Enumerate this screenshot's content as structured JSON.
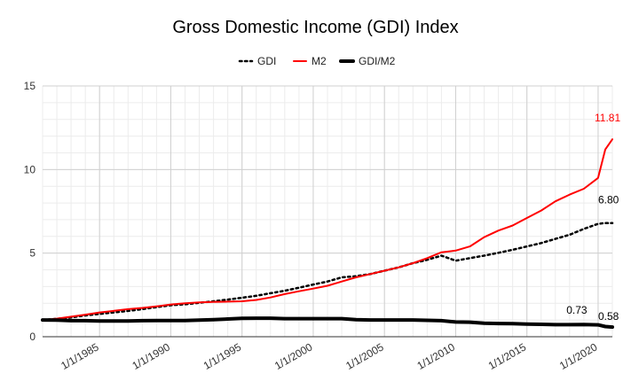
{
  "chart_data": {
    "type": "line",
    "title": "Gross Domestic Income (GDI) Index",
    "xlabel": "",
    "ylabel": "",
    "xlim": [
      1981,
      2021
    ],
    "ylim": [
      0,
      15
    ],
    "y_ticks": [
      0,
      5,
      10,
      15
    ],
    "x_ticks": [
      1985,
      1990,
      1995,
      2000,
      2005,
      2010,
      2015,
      2020
    ],
    "x_tick_labels": [
      "1/1/1985",
      "1/1/1990",
      "1/1/1995",
      "1/1/2000",
      "1/1/2005",
      "1/1/2010",
      "1/1/2015",
      "1/1/2020"
    ],
    "grid": true,
    "legend_position": "top",
    "x": [
      1981,
      1982,
      1983,
      1984,
      1985,
      1986,
      1987,
      1988,
      1989,
      1990,
      1991,
      1992,
      1993,
      1994,
      1995,
      1996,
      1997,
      1998,
      1999,
      2000,
      2001,
      2002,
      2003,
      2004,
      2005,
      2006,
      2007,
      2008,
      2009,
      2010,
      2011,
      2012,
      2013,
      2014,
      2015,
      2016,
      2017,
      2018,
      2019,
      2020,
      2020.5,
      2021
    ],
    "series": [
      {
        "name": "GDI",
        "color": "#000000",
        "style": "dotted",
        "values": [
          1.0,
          1.07,
          1.15,
          1.27,
          1.36,
          1.45,
          1.54,
          1.65,
          1.77,
          1.88,
          1.94,
          2.03,
          2.12,
          2.22,
          2.33,
          2.45,
          2.6,
          2.75,
          2.93,
          3.12,
          3.3,
          3.55,
          3.62,
          3.75,
          3.95,
          4.15,
          4.4,
          4.6,
          4.85,
          4.55,
          4.7,
          4.85,
          5.02,
          5.2,
          5.4,
          5.6,
          5.85,
          6.1,
          6.45,
          6.75,
          6.8,
          6.8
        ],
        "end_label": "6.80"
      },
      {
        "name": "M2",
        "color": "#ff0000",
        "style": "solid",
        "values": [
          1.0,
          1.08,
          1.2,
          1.32,
          1.45,
          1.55,
          1.65,
          1.72,
          1.82,
          1.93,
          2.0,
          2.05,
          2.08,
          2.1,
          2.12,
          2.2,
          2.35,
          2.55,
          2.72,
          2.88,
          3.05,
          3.3,
          3.55,
          3.75,
          3.95,
          4.15,
          4.4,
          4.7,
          5.05,
          5.15,
          5.4,
          5.95,
          6.35,
          6.65,
          7.1,
          7.55,
          8.1,
          8.5,
          8.85,
          9.5,
          11.2,
          11.81
        ],
        "end_label": "11.81"
      },
      {
        "name": "GDI/M2",
        "color": "#000000",
        "style": "thick",
        "values": [
          1.0,
          0.99,
          0.96,
          0.96,
          0.94,
          0.94,
          0.94,
          0.96,
          0.97,
          0.97,
          0.97,
          0.99,
          1.02,
          1.06,
          1.1,
          1.11,
          1.11,
          1.08,
          1.08,
          1.08,
          1.08,
          1.08,
          1.02,
          1.0,
          1.0,
          1.0,
          1.0,
          0.98,
          0.96,
          0.88,
          0.87,
          0.81,
          0.79,
          0.78,
          0.76,
          0.74,
          0.72,
          0.72,
          0.73,
          0.71,
          0.61,
          0.58
        ],
        "end_label": "0.58"
      }
    ],
    "annotations": [
      {
        "text": "0.73",
        "series": "GDI/M2",
        "x": 2019
      }
    ]
  }
}
